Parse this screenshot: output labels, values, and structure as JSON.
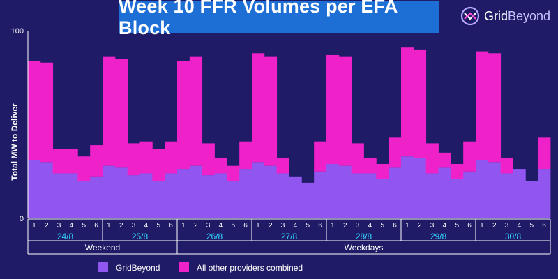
{
  "header": {
    "title": "Week 10 FFR Volumes per EFA Block",
    "logo_text_a": "Grid",
    "logo_text_b": "Beyond",
    "logo_icon": "gridbeyond-logo-icon"
  },
  "colors": {
    "background": "#1f1b66",
    "gridbeyond": "#9256f0",
    "others": "#ef22c9",
    "axis_text": "#ffffff",
    "date_text": "#34d3ff",
    "title_bg": "#1d6fd6"
  },
  "chart_data": {
    "type": "bar",
    "stacked": true,
    "ylabel": "Total MW to Deliver",
    "ylim": [
      0,
      100
    ],
    "y_ticks": [
      0,
      100
    ],
    "x_tick_labels": [
      "1",
      "2",
      "3",
      "4",
      "5",
      "6"
    ],
    "days": [
      {
        "date": "24/8",
        "group": "Weekend",
        "gridbeyond": [
          31,
          30,
          24,
          24,
          20,
          22
        ],
        "others": [
          53,
          53,
          13,
          13,
          13,
          17
        ]
      },
      {
        "date": "25/8",
        "group": "Weekend",
        "gridbeyond": [
          28,
          27,
          23,
          24,
          20,
          24
        ],
        "others": [
          58,
          58,
          17,
          17,
          17,
          17
        ]
      },
      {
        "date": "26/8",
        "group": "Weekdays",
        "gridbeyond": [
          26,
          28,
          23,
          24,
          20,
          26
        ],
        "others": [
          58,
          58,
          17,
          8,
          8,
          15
        ]
      },
      {
        "date": "27/8",
        "group": "Weekdays",
        "gridbeyond": [
          30,
          28,
          24,
          22,
          19,
          25
        ],
        "others": [
          58,
          58,
          8,
          0,
          0,
          16
        ]
      },
      {
        "date": "28/8",
        "group": "Weekdays",
        "gridbeyond": [
          29,
          28,
          24,
          24,
          21,
          27
        ],
        "others": [
          58,
          58,
          16,
          8,
          8,
          16
        ]
      },
      {
        "date": "29/8",
        "group": "Weekdays",
        "gridbeyond": [
          33,
          32,
          24,
          27,
          21,
          25
        ],
        "others": [
          58,
          58,
          16,
          8,
          8,
          16
        ]
      },
      {
        "date": "30/8",
        "group": "Weekdays",
        "gridbeyond": [
          31,
          30,
          24,
          26,
          20,
          26
        ],
        "others": [
          58,
          58,
          8,
          0,
          0,
          17
        ]
      }
    ],
    "groups": [
      {
        "label": "Weekend",
        "days": 2
      },
      {
        "label": "Weekdays",
        "days": 5
      }
    ],
    "legend": [
      {
        "name": "GridBeyond",
        "color": "#9256f0"
      },
      {
        "name": "All other providers combined",
        "color": "#ef22c9"
      }
    ],
    "legend_position": "bottom"
  }
}
